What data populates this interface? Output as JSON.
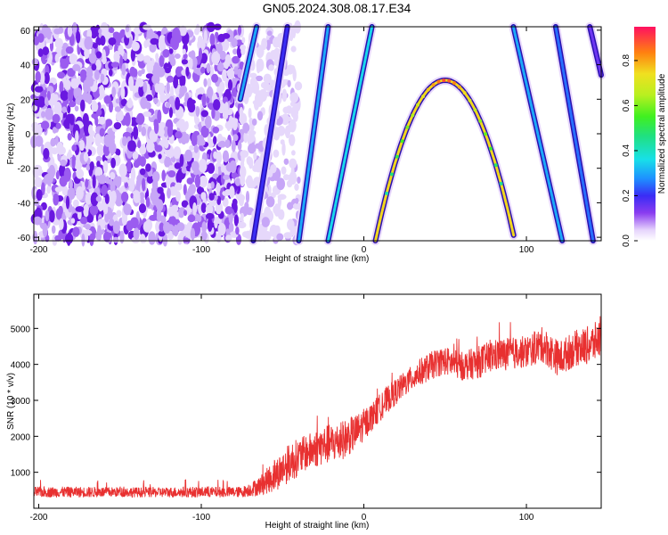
{
  "title": "GN05.2024.308.08.17.E34",
  "chart_data": [
    {
      "type": "heatmap",
      "xlabel": "Height of straight line (km)",
      "ylabel": "Frequency (Hz)",
      "xlim": [
        -203,
        146
      ],
      "ylim": [
        -62,
        62
      ],
      "x_ticks": [
        -200,
        -100,
        0,
        100
      ],
      "x_tick_labels": [
        "-200",
        "-100",
        "0",
        "100"
      ],
      "y_ticks": [
        -60,
        -40,
        -20,
        0,
        20,
        40,
        60
      ],
      "y_tick_labels": [
        "-60",
        "-40",
        "-20",
        "0",
        "20",
        "40",
        "60"
      ],
      "colorbar": {
        "label": "Normalized spectral amplitude",
        "range": [
          0,
          0.95
        ],
        "ticks": [
          0.0,
          0.2,
          0.4,
          0.6,
          0.8
        ],
        "tick_labels": [
          "0.0",
          "0.2",
          "0.4",
          "0.6",
          "0.8"
        ]
      },
      "noise_region": {
        "x_range": [
          -203,
          -75
        ],
        "fading_to": -40
      },
      "features": [
        {
          "kind": "line",
          "points": [
            [
              -76,
              20
            ],
            [
              -66,
              62
            ]
          ],
          "amplitude": 0.3
        },
        {
          "kind": "line",
          "points": [
            [
              -68,
              -62
            ],
            [
              -47,
              62
            ]
          ],
          "amplitude": 0.2
        },
        {
          "kind": "line",
          "points": [
            [
              -40,
              -62
            ],
            [
              -22,
              62
            ]
          ],
          "amplitude": 0.3
        },
        {
          "kind": "line",
          "points": [
            [
              -22,
              -62
            ],
            [
              5,
              62
            ]
          ],
          "amplitude": 0.35
        },
        {
          "kind": "parabola",
          "vertex": [
            50,
            31
          ],
          "curvature": 0.0506,
          "y_min": -62,
          "amplitude": 0.75
        },
        {
          "kind": "line",
          "points": [
            [
              92,
              62
            ],
            [
              122,
              -62
            ]
          ],
          "amplitude": 0.3
        },
        {
          "kind": "line",
          "points": [
            [
              118,
              62
            ],
            [
              141,
              -62
            ]
          ],
          "amplitude": 0.25
        },
        {
          "kind": "line",
          "points": [
            [
              139,
              62
            ],
            [
              146,
              34
            ]
          ],
          "amplitude": 0.15
        }
      ]
    },
    {
      "type": "line",
      "xlabel": "Height of straight line (km)",
      "ylabel": "SNR (10 * v/v)",
      "xlim": [
        -203,
        146
      ],
      "ylim": [
        0,
        5950
      ],
      "x_ticks": [
        -200,
        -100,
        0,
        100
      ],
      "x_tick_labels": [
        "-200",
        "-100",
        "0",
        "100"
      ],
      "y_ticks": [
        1000,
        2000,
        3000,
        4000,
        5000
      ],
      "y_tick_labels": [
        "1000",
        "2000",
        "3000",
        "4000",
        "5000"
      ],
      "color": "#e83030",
      "series": [
        {
          "x": [
            -203,
            -190,
            -170,
            -150,
            -130,
            -110,
            -90,
            -75,
            -65,
            -55,
            -45,
            -35,
            -25,
            -15,
            -5,
            5,
            15,
            25,
            35,
            45,
            50,
            60,
            70,
            80,
            90,
            100,
            110,
            120,
            130,
            140,
            146
          ],
          "y": [
            450,
            450,
            450,
            450,
            440,
            450,
            450,
            450,
            600,
            900,
            1300,
            1550,
            1750,
            1850,
            2100,
            2550,
            3050,
            3450,
            3800,
            4050,
            4100,
            3950,
            4050,
            4250,
            4300,
            4350,
            4550,
            4150,
            4450,
            4550,
            4750
          ],
          "noise_amplitude": [
            150,
            150,
            150,
            140,
            140,
            150,
            150,
            150,
            250,
            450,
            550,
            500,
            550,
            550,
            500,
            400,
            380,
            350,
            380,
            400,
            400,
            400,
            450,
            450,
            450,
            450,
            500,
            500,
            500,
            550,
            550
          ]
        }
      ]
    }
  ]
}
